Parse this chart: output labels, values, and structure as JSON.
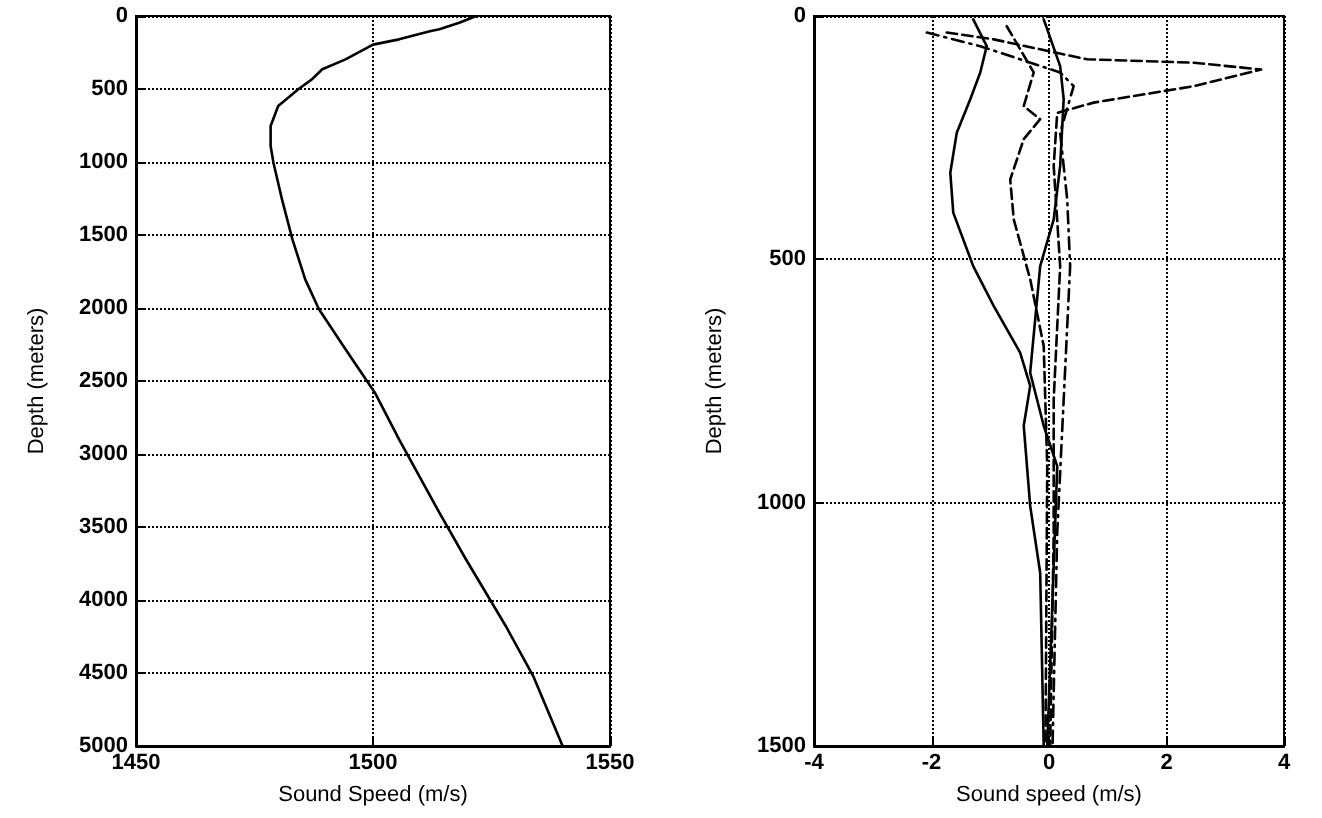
{
  "chart_data": [
    {
      "type": "line",
      "xlabel": "Sound Speed (m/s)",
      "ylabel": "Depth (meters)",
      "xlim": [
        1450,
        1550
      ],
      "xticks": [
        1450,
        1500,
        1550
      ],
      "ylim": [
        5000,
        0
      ],
      "yticks": [
        0,
        500,
        1000,
        1500,
        2000,
        2500,
        3000,
        3500,
        4000,
        4500,
        5000
      ],
      "grid": true,
      "marker": "none",
      "line_style": "solid",
      "series": [
        {
          "color": "#000000",
          "x": [
            1521.8,
            1518.2,
            1514,
            1512,
            1505.5,
            1500,
            1494.2,
            1489.3,
            1487.1,
            1484.3,
            1480,
            1478.4,
            1478.4,
            1479,
            1480.8,
            1483,
            1485.7,
            1488.6,
            1494.2,
            1500.4,
            1505.5,
            1514,
            1519.6,
            1528,
            1533.8,
            1540
          ],
          "values": [
            0,
            46,
            91,
            105,
            160,
            196,
            297,
            365,
            434,
            500,
            616,
            753,
            890,
            1005,
            1256,
            1530,
            1804,
            2009,
            2283,
            2580,
            2900,
            3402,
            3721,
            4178,
            4521,
            5000
          ]
        }
      ]
    },
    {
      "type": "line",
      "xlabel": "Sound speed (m/s)",
      "ylabel": "Depth (meters)",
      "xlim": [
        -4,
        4
      ],
      "xticks": [
        -4,
        -2,
        0,
        2,
        4
      ],
      "ylim": [
        1500,
        0
      ],
      "yticks": [
        0,
        500,
        1000,
        1500
      ],
      "grid": true,
      "marker": "none",
      "series": [
        {
          "color": "#000000",
          "line_style": "solid",
          "x": [
            -1.29,
            -1.06,
            -1.17,
            -1.34,
            -1.57,
            -1.68,
            -1.63,
            -1.29,
            -0.94,
            -0.49,
            -0.32,
            -0.43,
            -0.32,
            -0.15,
            -0.09
          ],
          "values": [
            7,
            62,
            116,
            171,
            240,
            322,
            404,
            514,
            596,
            692,
            760,
            842,
            1007,
            1144,
            1500
          ]
        },
        {
          "color": "#000000",
          "line_style": "solid",
          "x": [
            -0.09,
            0.19,
            0.25,
            0.19,
            0.08,
            -0.15,
            -0.32,
            -0.09,
            0.14,
            0.08,
            -0.03
          ],
          "values": [
            7,
            103,
            171,
            308,
            418,
            514,
            733,
            842,
            925,
            1130,
            1500
          ]
        },
        {
          "color": "#000000",
          "line_style": "dashed",
          "x": [
            -1.74,
            -0.94,
            0.65,
            2.47,
            3.61,
            2.47,
            0.76,
            0.14,
            0.08,
            0.19,
            0.08,
            0.08,
            0.02
          ],
          "values": [
            34,
            48,
            89,
            96,
            110,
            144,
            178,
            199,
            308,
            514,
            788,
            1062,
            1500
          ]
        },
        {
          "color": "#000000",
          "line_style": "dashed",
          "x": [
            -0.72,
            -0.26,
            -0.43,
            -0.15,
            -0.43,
            -0.66,
            -0.6,
            -0.32,
            -0.09,
            -0.03,
            -0.06
          ],
          "values": [
            21,
            116,
            185,
            212,
            253,
            336,
            418,
            541,
            678,
            925,
            1500
          ]
        },
        {
          "color": "#000000",
          "line_style": "dotted",
          "x": [
            -2.08,
            -1.17,
            0.19,
            0.42,
            0.19,
            0.31,
            0.36,
            0.25,
            0.14,
            0.06
          ],
          "values": [
            34,
            62,
            116,
            144,
            240,
            377,
            514,
            788,
            1062,
            1500
          ]
        }
      ]
    }
  ]
}
